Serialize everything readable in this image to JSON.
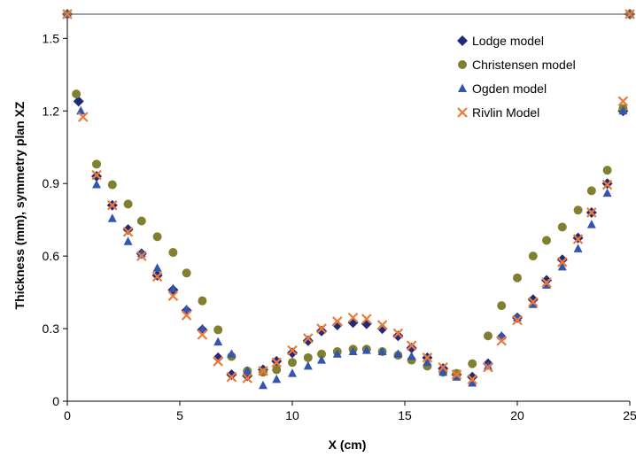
{
  "chart_data": {
    "type": "scatter",
    "xlabel": "X (cm)",
    "ylabel": "Thickness (mm), symmetry plan XZ",
    "xlim": [
      0,
      25
    ],
    "ylim": [
      0,
      1.6
    ],
    "xticks": [
      "0",
      "5",
      "10",
      "15",
      "20",
      "25"
    ],
    "yticks": [
      "0",
      "0.3",
      "0.6",
      "0.9",
      "1.2",
      "1.5"
    ],
    "grid": false,
    "legend_position": "top-right",
    "reference_line": {
      "y": 1.6,
      "color": "#808080"
    },
    "series": [
      {
        "name": "Lodge model",
        "marker": "diamond",
        "color": "#1f2a7a",
        "x": [
          0.0,
          0.5,
          1.3,
          2.0,
          2.7,
          3.3,
          4.0,
          4.7,
          5.3,
          6.0,
          6.7,
          7.3,
          8.0,
          8.7,
          9.3,
          10.0,
          10.7,
          11.3,
          12.0,
          12.7,
          13.3,
          14.0,
          14.7,
          15.3,
          16.0,
          16.7,
          17.3,
          18.0,
          18.7,
          19.3,
          20.0,
          20.7,
          21.3,
          22.0,
          22.7,
          23.3,
          24.0,
          24.7,
          25.0
        ],
        "y": [
          1.6,
          1.24,
          0.93,
          0.81,
          0.71,
          0.61,
          0.52,
          0.46,
          0.375,
          0.295,
          0.18,
          0.11,
          0.105,
          0.13,
          0.165,
          0.2,
          0.25,
          0.29,
          0.315,
          0.325,
          0.32,
          0.3,
          0.27,
          0.22,
          0.18,
          0.135,
          0.11,
          0.1,
          0.155,
          0.265,
          0.345,
          0.42,
          0.5,
          0.585,
          0.675,
          0.78,
          0.9,
          1.2,
          1.6
        ]
      },
      {
        "name": "Christensen model",
        "marker": "circle",
        "color": "#808030",
        "x": [
          0.0,
          0.4,
          1.3,
          2.0,
          2.7,
          3.3,
          4.0,
          4.7,
          5.3,
          6.0,
          6.7,
          7.3,
          8.0,
          8.7,
          9.3,
          10.0,
          10.7,
          11.3,
          12.0,
          12.7,
          13.3,
          14.0,
          14.7,
          15.3,
          16.0,
          16.7,
          17.3,
          18.0,
          18.7,
          19.3,
          20.0,
          20.7,
          21.3,
          22.0,
          22.7,
          23.3,
          24.0,
          24.7,
          25.0
        ],
        "y": [
          1.6,
          1.27,
          0.98,
          0.895,
          0.815,
          0.745,
          0.68,
          0.615,
          0.53,
          0.415,
          0.295,
          0.185,
          0.125,
          0.12,
          0.13,
          0.16,
          0.18,
          0.195,
          0.205,
          0.215,
          0.215,
          0.205,
          0.19,
          0.17,
          0.145,
          0.12,
          0.115,
          0.155,
          0.27,
          0.395,
          0.51,
          0.6,
          0.665,
          0.72,
          0.79,
          0.87,
          0.955,
          1.21,
          1.6
        ]
      },
      {
        "name": "Ogden model",
        "marker": "triangle",
        "color": "#3355b0",
        "x": [
          0.0,
          0.6,
          1.3,
          2.0,
          2.7,
          3.3,
          4.0,
          4.7,
          5.3,
          6.0,
          6.7,
          7.3,
          8.0,
          8.7,
          9.3,
          10.0,
          10.7,
          11.3,
          12.0,
          12.7,
          13.3,
          14.0,
          14.7,
          15.3,
          16.0,
          16.7,
          17.3,
          18.0,
          18.7,
          19.3,
          20.0,
          20.7,
          21.3,
          22.0,
          22.7,
          23.3,
          24.0,
          24.7,
          25.0
        ],
        "y": [
          1.6,
          1.2,
          0.895,
          0.755,
          0.66,
          0.61,
          0.55,
          0.465,
          0.38,
          0.3,
          0.245,
          0.195,
          0.125,
          0.065,
          0.09,
          0.115,
          0.145,
          0.17,
          0.195,
          0.205,
          0.21,
          0.205,
          0.195,
          0.185,
          0.16,
          0.12,
          0.1,
          0.075,
          0.145,
          0.27,
          0.345,
          0.4,
          0.48,
          0.555,
          0.63,
          0.73,
          0.86,
          1.2,
          1.6
        ]
      },
      {
        "name": "Rivlin Model",
        "marker": "x",
        "color": "#ee7a3a",
        "x": [
          0.0,
          0.7,
          1.3,
          2.0,
          2.7,
          3.3,
          4.0,
          4.7,
          5.3,
          6.0,
          6.7,
          7.3,
          8.0,
          8.7,
          9.3,
          10.0,
          10.7,
          11.3,
          12.0,
          12.7,
          13.3,
          14.0,
          14.7,
          15.3,
          16.0,
          16.7,
          17.3,
          18.0,
          18.7,
          19.3,
          20.0,
          20.7,
          21.3,
          22.0,
          22.7,
          23.3,
          24.0,
          24.7,
          25.0
        ],
        "y": [
          1.6,
          1.175,
          0.935,
          0.81,
          0.7,
          0.6,
          0.515,
          0.435,
          0.355,
          0.275,
          0.165,
          0.1,
          0.095,
          0.125,
          0.16,
          0.21,
          0.26,
          0.3,
          0.33,
          0.345,
          0.34,
          0.315,
          0.28,
          0.23,
          0.18,
          0.14,
          0.11,
          0.09,
          0.14,
          0.25,
          0.335,
          0.41,
          0.49,
          0.575,
          0.67,
          0.78,
          0.895,
          1.24,
          1.6
        ]
      }
    ]
  }
}
